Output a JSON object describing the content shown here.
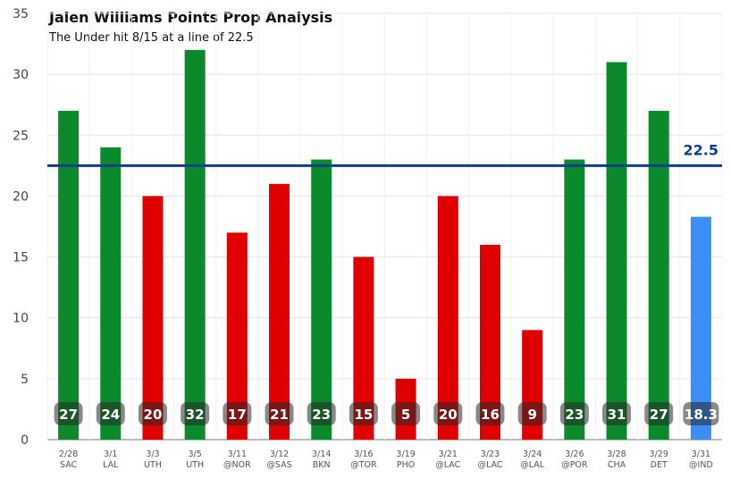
{
  "chart_data": {
    "type": "bar",
    "title": "Jalen Williams Points Prop Analysis",
    "subtitle": "The Under hit 8/15 at a line of 22.5",
    "xlabel": "",
    "ylabel": "",
    "ylim": [
      0,
      35
    ],
    "yticks": [
      0,
      5,
      10,
      15,
      20,
      25,
      30,
      35
    ],
    "grid": true,
    "line": {
      "value": 22.5,
      "label": "22.5",
      "color": "#0b3d91"
    },
    "categories": [
      {
        "date": "2/28",
        "opp": "SAC"
      },
      {
        "date": "3/1",
        "opp": "LAL"
      },
      {
        "date": "3/3",
        "opp": "UTH"
      },
      {
        "date": "3/5",
        "opp": "UTH"
      },
      {
        "date": "3/11",
        "opp": "@NOR"
      },
      {
        "date": "3/12",
        "opp": "@SAS"
      },
      {
        "date": "3/14",
        "opp": "BKN"
      },
      {
        "date": "3/16",
        "opp": "@TOR"
      },
      {
        "date": "3/19",
        "opp": "PHO"
      },
      {
        "date": "3/21",
        "opp": "@LAC"
      },
      {
        "date": "3/23",
        "opp": "@LAC"
      },
      {
        "date": "3/24",
        "opp": "@LAL"
      },
      {
        "date": "3/26",
        "opp": "@POR"
      },
      {
        "date": "3/28",
        "opp": "CHA"
      },
      {
        "date": "3/29",
        "opp": "DET"
      },
      {
        "date": "3/31",
        "opp": "@IND"
      }
    ],
    "values": [
      27,
      24,
      20,
      32,
      17,
      21,
      23,
      15,
      5,
      20,
      16,
      9,
      23,
      31,
      27,
      18.3
    ],
    "value_labels": [
      "27",
      "24",
      "20",
      "32",
      "17",
      "21",
      "23",
      "15",
      "5",
      "20",
      "16",
      "9",
      "23",
      "31",
      "27",
      "18.3"
    ],
    "bar_status": [
      "over",
      "over",
      "under",
      "over",
      "under",
      "under",
      "over",
      "under",
      "under",
      "under",
      "under",
      "under",
      "over",
      "over",
      "over",
      "projection"
    ],
    "colors": {
      "over": "#0a8a2a",
      "under": "#e00000",
      "projection": "#3a8ef6",
      "grid": "#e4e4e4",
      "axis": "#777777"
    }
  }
}
